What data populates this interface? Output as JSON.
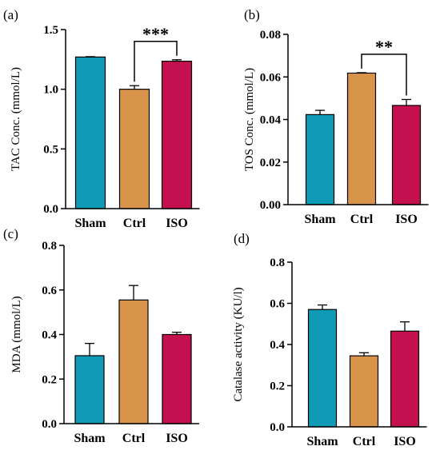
{
  "colors": {
    "Sham": "#0f9bb6",
    "Ctrl": "#d9944b",
    "ISO": "#c4104f",
    "axis": "#000000"
  },
  "chart_data": [
    {
      "type": "bar",
      "panel_label": "(a)",
      "categories": [
        "Sham",
        "Ctrl",
        "ISO"
      ],
      "values": [
        1.27,
        1.0,
        1.235
      ],
      "errors": [
        0.003,
        0.03,
        0.012
      ],
      "ylabel": "TAC Conc. (mmol/L)",
      "ylim": [
        0,
        1.5
      ],
      "yticks": [
        0,
        0.5,
        1.0,
        1.5
      ],
      "ytick_labels": [
        "0.0",
        "0.5",
        "1.0",
        "1.5"
      ],
      "significance": [
        {
          "from": "Ctrl",
          "to": "ISO",
          "label": "***"
        }
      ]
    },
    {
      "type": "bar",
      "panel_label": "(b)",
      "categories": [
        "Sham",
        "Ctrl",
        "ISO"
      ],
      "values": [
        0.0423,
        0.0618,
        0.0466
      ],
      "errors": [
        0.002,
        0.0002,
        0.0028
      ],
      "ylabel": "TOS Conc. (mmol/L)",
      "ylim": [
        0,
        0.08
      ],
      "yticks": [
        0,
        0.02,
        0.04,
        0.06,
        0.08
      ],
      "ytick_labels": [
        "0.00",
        "0.02",
        "0.04",
        "0.06",
        "0.08"
      ],
      "significance": [
        {
          "from": "Ctrl",
          "to": "ISO",
          "label": "**"
        }
      ]
    },
    {
      "type": "bar",
      "panel_label": "(c)",
      "categories": [
        "Sham",
        "Ctrl",
        "ISO"
      ],
      "values": [
        0.305,
        0.555,
        0.4
      ],
      "errors": [
        0.055,
        0.065,
        0.01
      ],
      "ylabel": "MDA (mmol/L)",
      "ylim": [
        0,
        0.8
      ],
      "yticks": [
        0,
        0.2,
        0.4,
        0.6,
        0.8
      ],
      "ytick_labels": [
        "0.0",
        "0.2",
        "0.4",
        "0.6",
        "0.8"
      ],
      "significance": []
    },
    {
      "type": "bar",
      "panel_label": "(d)",
      "categories": [
        "Sham",
        "Ctrl",
        "ISO"
      ],
      "values": [
        0.57,
        0.345,
        0.465
      ],
      "errors": [
        0.022,
        0.015,
        0.045
      ],
      "ylabel": "Catalase activity (KU/l)",
      "ylim": [
        0,
        0.8
      ],
      "yticks": [
        0,
        0.2,
        0.4,
        0.6,
        0.8
      ],
      "ytick_labels": [
        "0.0",
        "0.2",
        "0.4",
        "0.6",
        "0.8"
      ],
      "significance": []
    }
  ]
}
